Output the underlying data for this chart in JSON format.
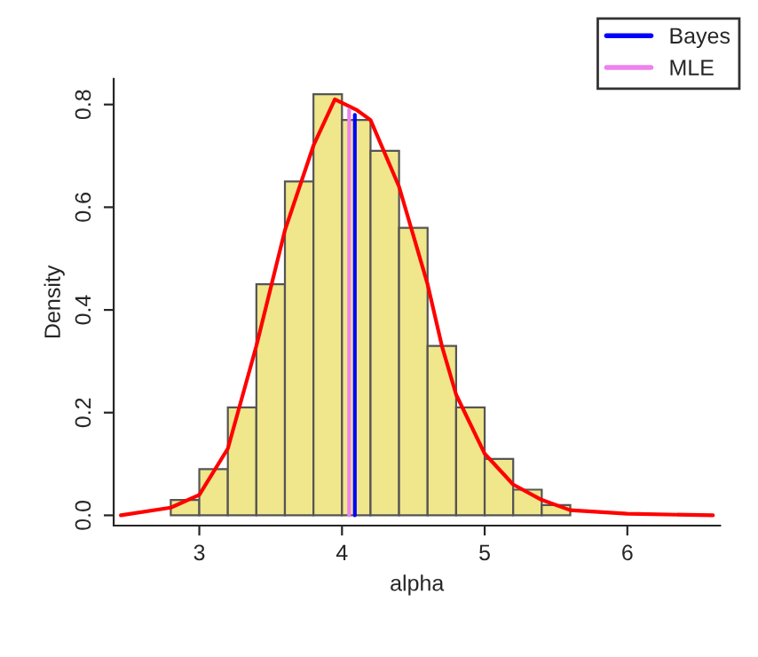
{
  "chart_data": {
    "type": "histogram",
    "xlabel": "alpha",
    "ylabel": "Density",
    "bins": [
      2.8,
      3.0,
      3.2,
      3.4,
      3.6,
      3.8,
      4.0,
      4.2,
      4.4,
      4.6,
      4.8,
      5.0,
      5.2,
      5.4,
      5.6
    ],
    "values": [
      0.03,
      0.09,
      0.21,
      0.45,
      0.65,
      0.82,
      0.77,
      0.71,
      0.56,
      0.33,
      0.21,
      0.11,
      0.05,
      0.02
    ],
    "color": "#f0e68c",
    "series": [
      {
        "type": "line",
        "color": "#ff0000",
        "x": [
          2.45,
          2.8,
          3.0,
          3.2,
          3.4,
          3.6,
          3.8,
          3.95,
          4.1,
          4.2,
          4.4,
          4.6,
          4.7,
          4.8,
          5.0,
          5.2,
          5.4,
          5.6,
          6.0,
          6.6
        ],
        "values": [
          0.0,
          0.015,
          0.04,
          0.13,
          0.33,
          0.555,
          0.72,
          0.81,
          0.79,
          0.77,
          0.64,
          0.45,
          0.33,
          0.235,
          0.12,
          0.06,
          0.03,
          0.01,
          0.003,
          0.0
        ]
      },
      {
        "type": "line",
        "name": "Bayes",
        "color": "#0000ff",
        "x": [
          4.09,
          4.09
        ],
        "values": [
          0.0,
          0.78
        ]
      },
      {
        "type": "line",
        "name": "MLE",
        "color": "#ee82ee",
        "x": [
          4.05,
          4.05
        ],
        "values": [
          0.0,
          0.79
        ]
      }
    ],
    "xlim": [
      2.4,
      6.65
    ],
    "ylim": [
      -0.02,
      0.85
    ],
    "xticks": [
      3,
      4,
      5,
      6
    ],
    "yticks": [
      {
        "value": 0,
        "label": "0.0"
      },
      0.2,
      0.4,
      0.6,
      0.8
    ],
    "grid": false,
    "legend": "top right"
  }
}
